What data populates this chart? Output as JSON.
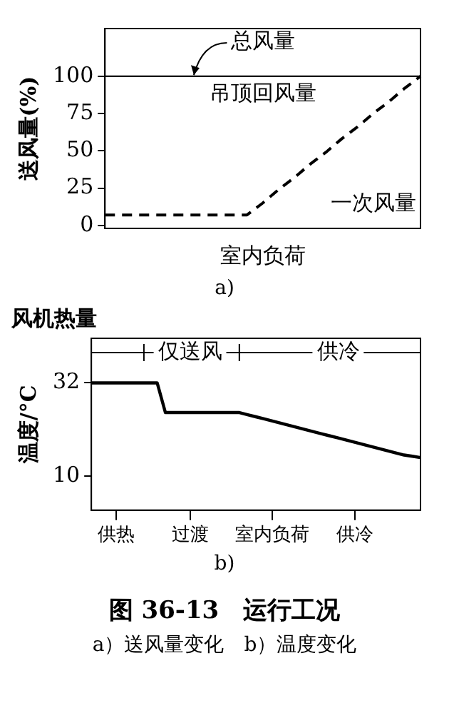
{
  "chart_data": [
    {
      "type": "line",
      "subtitle": "a)",
      "xlabel": "室内负荷",
      "ylabel": "送风量(%)",
      "categories": [
        null,
        null,
        null,
        null,
        null,
        null,
        null,
        null,
        null,
        null,
        null,
        null,
        null,
        null,
        null,
        null,
        null,
        null,
        null,
        null,
        null
      ],
      "series": [
        {
          "color": "#000000",
          "line_style": "solid",
          "values": [
            100,
            100,
            100,
            100,
            100,
            100,
            100,
            100,
            100,
            100,
            100,
            100,
            100,
            100,
            100,
            100,
            100,
            100,
            100,
            100,
            100
          ]
        },
        {
          "color": "#000000",
          "line_style": "dashed",
          "values": [
            7,
            7,
            7,
            7,
            7,
            7,
            7,
            7,
            7,
            7,
            15,
            24,
            32,
            41,
            49,
            58,
            66,
            75,
            83,
            92,
            100
          ]
        }
      ],
      "ylim": [
        -2,
        132
      ],
      "yticks": [
        0,
        25,
        50,
        75,
        100
      ],
      "tick_labels": "y",
      "grid": false,
      "legend": false,
      "marker": "none",
      "annotations": [
        "总风量",
        "吊顶回风量",
        "一次风量"
      ]
    },
    {
      "type": "line",
      "title": "风机热量",
      "subtitle": "b)",
      "ylabel": "温度/°C",
      "categories": [
        null,
        null,
        null,
        "供热",
        null,
        null,
        null,
        null,
        null,
        null,
        null,
        null,
        "过渡",
        null,
        null,
        null,
        null,
        null,
        null,
        null,
        null,
        null,
        "室内负荷",
        null,
        null,
        null,
        null,
        null,
        null,
        null,
        null,
        null,
        "供冷",
        null,
        null,
        null,
        null,
        null,
        null,
        null,
        null
      ],
      "series": [
        {
          "color": "#000000",
          "line_style": "solid",
          "values": [
            32,
            32,
            32,
            32,
            32,
            32,
            32,
            32,
            32,
            25,
            25,
            25,
            25,
            25,
            25,
            25,
            25,
            25,
            25,
            24.5,
            24,
            23.5,
            23,
            22.5,
            22,
            21.5,
            21,
            20.5,
            20,
            19.5,
            19,
            18.5,
            18,
            17.5,
            17,
            16.5,
            16,
            15.5,
            15,
            14.7,
            14.4
          ]
        }
      ],
      "ylim": [
        2,
        42.5
      ],
      "yticks": [
        32,
        10
      ],
      "grid": false,
      "legend": false,
      "marker": "none",
      "annotations": [
        "仅送风",
        "供冷"
      ]
    },
    {
      "type": "other",
      "title": "图 36-13　运行工况",
      "subtitle": "a）送风量变化　b）温度变化"
    }
  ]
}
